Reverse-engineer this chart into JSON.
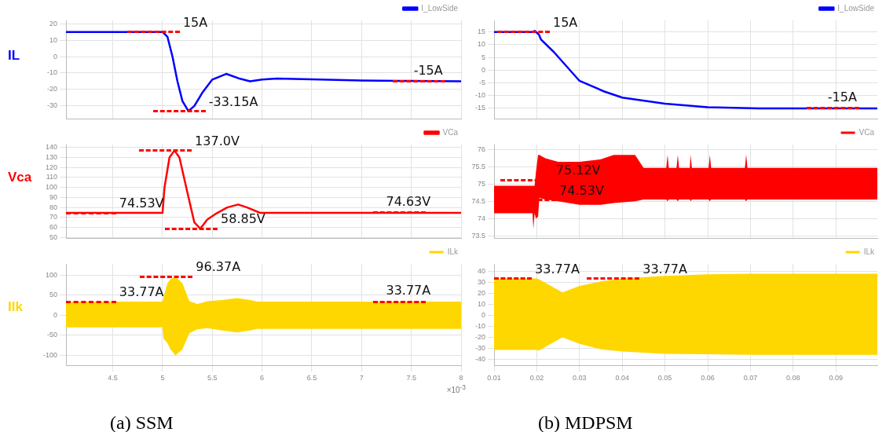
{
  "chart_data": [
    {
      "type": "line",
      "ylabel": "IL",
      "xlim": [
        4.03,
        8
      ],
      "xticks": [
        4.5,
        5,
        5.5,
        6,
        6.5,
        7,
        7.5,
        8
      ],
      "ylim": [
        -38,
        22
      ],
      "yticks": [
        -30,
        -20,
        -10,
        0,
        10,
        20
      ],
      "grid": true,
      "legend": "top right",
      "tick_labels": "y",
      "series": [
        {
          "name": "I_LowSide",
          "color": "#0000ff",
          "x": [
            4.03,
            5.0,
            5.05,
            5.1,
            5.15,
            5.2,
            5.26,
            5.32,
            5.4,
            5.5,
            5.64,
            5.78,
            5.88,
            6.0,
            6.15,
            6.5,
            7.0,
            7.5,
            8.0
          ],
          "values": [
            15,
            15,
            12,
            0,
            -15,
            -27,
            -33.15,
            -30,
            -22,
            -14,
            -10.5,
            -13.5,
            -15,
            -14,
            -13.3,
            -13.8,
            -14.5,
            -14.8,
            -15
          ]
        }
      ],
      "annotations": [
        {
          "text": "15A",
          "x": 5.0,
          "y": 15
        },
        {
          "text": "-33.15A",
          "x": 5.26,
          "y": -33.15
        },
        {
          "text": "-15A",
          "x": 7.67,
          "y": -15
        }
      ]
    },
    {
      "type": "line",
      "ylabel": "Vca",
      "xlim": [
        4.03,
        8
      ],
      "xticks": [
        4.5,
        5,
        5.5,
        6,
        6.5,
        7,
        7.5,
        8
      ],
      "ylim": [
        49,
        143
      ],
      "yticks": [
        50,
        60,
        70,
        80,
        90,
        100,
        110,
        120,
        130,
        140
      ],
      "grid": true,
      "legend": "top right",
      "tick_labels": "y",
      "series": [
        {
          "name": "VCa",
          "color": "#ff0000",
          "x": [
            4.03,
            5.0,
            5.02,
            5.07,
            5.12,
            5.17,
            5.25,
            5.32,
            5.38,
            5.45,
            5.54,
            5.65,
            5.76,
            5.85,
            5.98,
            6.5,
            7.0,
            8.0
          ],
          "values": [
            74.53,
            74.53,
            100,
            130,
            137,
            130,
            95,
            65,
            58.85,
            68,
            74,
            80,
            83,
            80,
            74.6,
            74.6,
            74.63,
            74.63
          ]
        }
      ],
      "annotations": [
        {
          "text": "137.0V",
          "x": 5.12,
          "y": 137
        },
        {
          "text": "74.53V",
          "x": 4.36,
          "y": 74.53
        },
        {
          "text": "58.85V",
          "x": 5.38,
          "y": 58.85
        },
        {
          "text": "74.63V",
          "x": 7.47,
          "y": 74.63
        }
      ]
    },
    {
      "type": "line",
      "ylabel": "Ilk",
      "xlim": [
        4.03,
        8
      ],
      "xticks": [
        4.5,
        5,
        5.5,
        6,
        6.5,
        7,
        7.5,
        8
      ],
      "ylim": [
        -125,
        128
      ],
      "yticks": [
        -100,
        -50,
        0,
        50,
        100
      ],
      "grid": true,
      "legend": "top right",
      "series": [
        {
          "name": "ILk",
          "color": "#ffd700",
          "x": [
            4.03,
            5.0,
            5.01,
            5.05,
            5.08,
            5.13,
            5.2,
            5.27,
            5.35,
            5.45,
            5.6,
            5.75,
            5.88,
            5.95,
            8
          ],
          "values": [
            null,
            null,
            null,
            null,
            null,
            null,
            null,
            null,
            null,
            null,
            null,
            null,
            null,
            null,
            null
          ],
          "upper": [
            33.77,
            33.77,
            45,
            80,
            90,
            96.37,
            80,
            35,
            28,
            35,
            38,
            43,
            38,
            33.77,
            33.77
          ],
          "lower": [
            -30,
            -30,
            -58,
            -70,
            -85,
            -100,
            -85,
            -45,
            -35,
            -32,
            -38,
            -43,
            -38,
            -34,
            -34
          ]
        }
      ],
      "annotations": [
        {
          "text": "96.37A",
          "x": 5.13,
          "y": 96.37
        },
        {
          "text": "33.77A",
          "x": 4.36,
          "y": 33.77
        },
        {
          "text": "33.77A",
          "x": 7.47,
          "y": 33.77
        },
        "×10$^{-3}$",
        "(a) SSM"
      ]
    },
    {
      "type": "line",
      "xlim": [
        0.01,
        0.0997
      ],
      "xticks": [
        0.01,
        0.02,
        0.03,
        0.04,
        0.05,
        0.06,
        0.07,
        0.08,
        0.09
      ],
      "ylim": [
        -19.4,
        19.6
      ],
      "yticks": [
        -15,
        -10,
        -5,
        0,
        5,
        10,
        15
      ],
      "grid": true,
      "legend": "top right",
      "tick_labels": "y",
      "series": [
        {
          "name": "I_LowSide",
          "color": "#0000ff",
          "x": [
            0.01,
            0.019,
            0.0195,
            0.0205,
            0.021,
            0.024,
            0.03,
            0.0358,
            0.04,
            0.05,
            0.06,
            0.072,
            0.0997
          ],
          "values": [
            15,
            15,
            15.5,
            14,
            12,
            7.1,
            -4.3,
            -8.5,
            -10.9,
            -13.3,
            -14.7,
            -15.2,
            -15.2
          ]
        }
      ],
      "annotations": [
        {
          "text": "15A",
          "x": 0.019,
          "y": 15
        },
        {
          "text": "-15A",
          "x": 0.0915,
          "y": -15
        }
      ]
    },
    {
      "type": "line",
      "xlim": [
        0.01,
        0.0997
      ],
      "xticks": [
        0.01,
        0.02,
        0.03,
        0.04,
        0.05,
        0.06,
        0.07,
        0.08,
        0.09
      ],
      "ylim": [
        73.42,
        76.15
      ],
      "yticks": [
        73.5,
        74,
        74.5,
        75,
        75.5,
        76
      ],
      "grid": true,
      "legend": "top right",
      "tick_labels": "y",
      "series": [
        {
          "name": "VCa",
          "color": "#ff0000",
          "x": [
            0.01,
            0.019,
            0.0192,
            0.0195,
            0.0198,
            0.0203,
            0.0206,
            0.022,
            0.025,
            0.03,
            0.035,
            0.038,
            0.043,
            0.045,
            0.0503,
            0.0506,
            0.0509,
            0.0527,
            0.053,
            0.0533,
            0.0558,
            0.056,
            0.0563,
            0.0602,
            0.0605,
            0.0608,
            0.0687,
            0.069,
            0.0693,
            0.0997
          ],
          "values": [
            null,
            null,
            null,
            null,
            null,
            null,
            null,
            null,
            null,
            null,
            null,
            null,
            null,
            null,
            null,
            null,
            null,
            null,
            null,
            null,
            null,
            null,
            null,
            null,
            null,
            null,
            null,
            null,
            null,
            null
          ],
          "upper": [
            74.95,
            74.95,
            74.95,
            74.95,
            75.35,
            75.85,
            75.85,
            75.75,
            75.65,
            75.65,
            75.72,
            75.85,
            75.85,
            75.47,
            75.47,
            75.85,
            75.47,
            75.47,
            75.85,
            75.47,
            75.47,
            75.85,
            75.47,
            75.47,
            75.85,
            75.47,
            75.47,
            75.86,
            75.47,
            75.47
          ],
          "lower": [
            74.15,
            74.15,
            73.7,
            74.15,
            74.0,
            74.05,
            74.6,
            74.55,
            74.5,
            74.4,
            74.4,
            74.45,
            74.5,
            74.55,
            74.55,
            74.5,
            74.55,
            74.55,
            74.5,
            74.55,
            74.55,
            74.5,
            74.55,
            74.55,
            74.5,
            74.55,
            74.55,
            74.5,
            74.55,
            74.55
          ]
        }
      ],
      "annotations": [
        {
          "text": "75.12V",
          "x": 0.0197,
          "y": 75.12
        },
        {
          "text": "74.53V",
          "x": 0.0205,
          "y": 74.53
        }
      ]
    },
    {
      "type": "line",
      "xlim": [
        0.01,
        0.0997
      ],
      "xticks": [
        0.01,
        0.02,
        0.03,
        0.04,
        0.05,
        0.06,
        0.07,
        0.08,
        0.09
      ],
      "ylim": [
        -45.6,
        47
      ],
      "yticks": [
        -40,
        -30,
        -20,
        -10,
        0,
        10,
        20,
        30,
        40
      ],
      "grid": true,
      "legend": "top right",
      "series": [
        {
          "name": "ILk",
          "color": "#ffd700",
          "x": [
            0.01,
            0.02,
            0.0205,
            0.026,
            0.03,
            0.035,
            0.04,
            0.05,
            0.06,
            0.07,
            0.0997
          ],
          "values": [
            null,
            null,
            null,
            null,
            null,
            null,
            null,
            null,
            null,
            null,
            null
          ],
          "upper": [
            33.77,
            33.77,
            33,
            21,
            27,
            31,
            33.77,
            36,
            37.5,
            38,
            38
          ],
          "lower": [
            -31.5,
            -31.5,
            -32,
            -20,
            -26,
            -31,
            -33,
            -35,
            -35.5,
            -36,
            -36
          ]
        }
      ],
      "annotations": [
        {
          "text": "33.77A",
          "x": 0.0148,
          "y": 33.77
        },
        {
          "text": "33.77A",
          "x": 0.04,
          "y": 33.77
        },
        "(b) MDPSM"
      ]
    }
  ]
}
